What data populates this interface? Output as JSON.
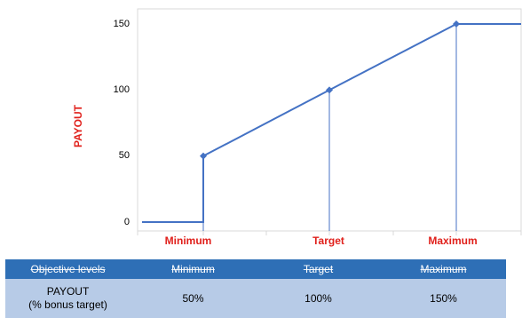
{
  "chart_data": {
    "type": "line",
    "ylabel": "PAYOUT",
    "ylim": [
      0,
      150
    ],
    "yticks": [
      "0",
      "50",
      "100",
      "150"
    ],
    "categories": [
      "Minimum",
      "Target",
      "Maximum"
    ],
    "series": [
      {
        "points": [
          {
            "x": "start",
            "y": 0
          },
          {
            "x": "Minimum",
            "y": 0
          },
          {
            "x": "Minimum",
            "y": 50
          },
          {
            "x": "Target",
            "y": 100
          },
          {
            "x": "Maximum",
            "y": 150
          },
          {
            "x": "end",
            "y": 150
          }
        ]
      }
    ],
    "colors": {
      "line": "#4472c4",
      "category_label": "#e0201b"
    }
  },
  "table": {
    "header": [
      "Objective levels",
      "Minimum",
      "Target",
      "Maximum"
    ],
    "row_label_line1": "PAYOUT",
    "row_label_line2": "(% bonus target)",
    "values": [
      "50%",
      "100%",
      "150%"
    ]
  }
}
